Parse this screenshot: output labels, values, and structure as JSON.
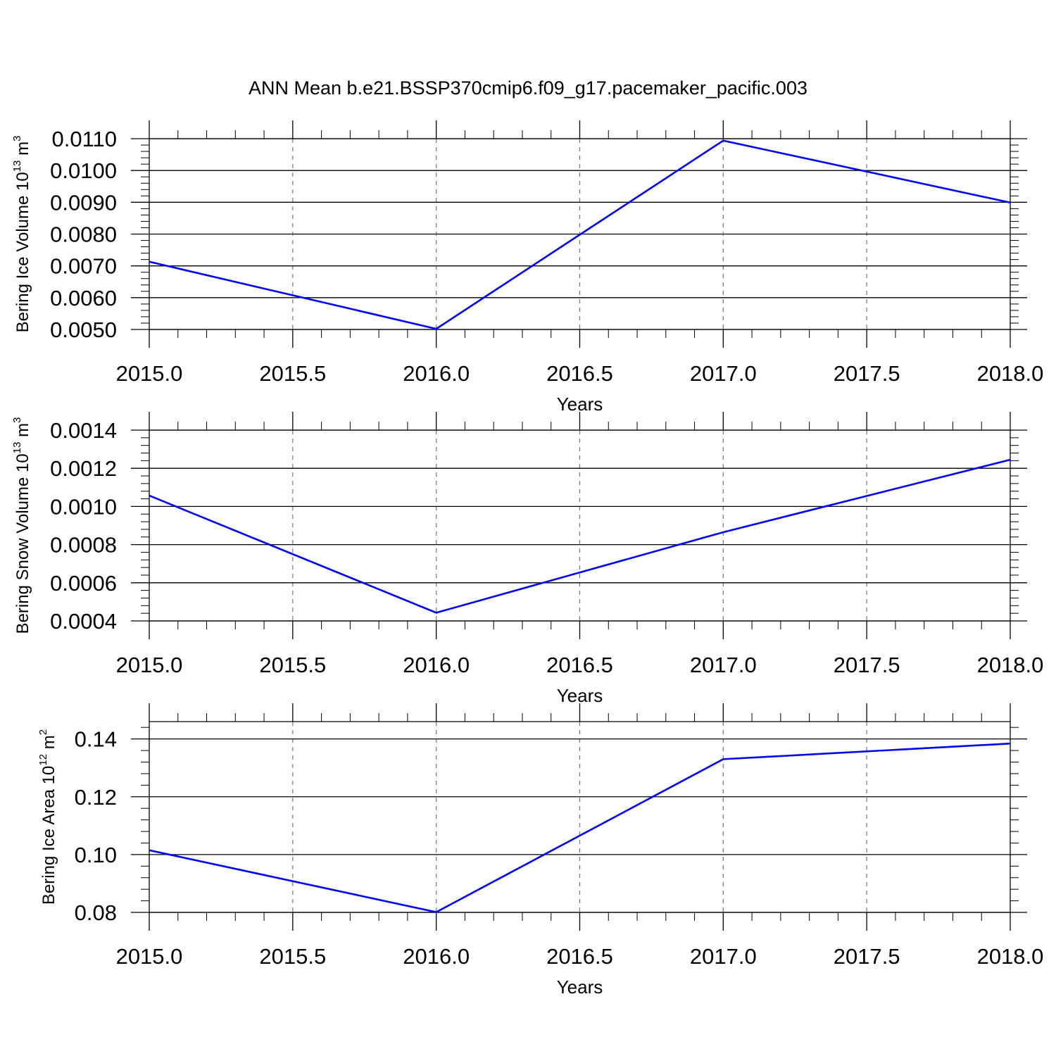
{
  "title": "ANN Mean b.e21.BSSP370cmip6.f09_g17.pacemaker_pacific.003",
  "colors": {
    "line": "#0000ff",
    "axes": "#000000",
    "grid": "#808080"
  },
  "chart_data": [
    {
      "type": "line",
      "x": [
        2015.0,
        2016.0,
        2017.0,
        2018.0
      ],
      "series": [
        {
          "values": [
            0.00713,
            0.00502,
            0.01094,
            0.00899
          ]
        }
      ],
      "xlim": [
        2015.0,
        2018.0
      ],
      "ylim": [
        0.005,
        0.011
      ],
      "xticks": [
        "2015.0",
        "2015.5",
        "2016.0",
        "2016.5",
        "2017.0",
        "2017.5",
        "2018.0"
      ],
      "yticks": [
        "0.0050",
        "0.0060",
        "0.0070",
        "0.0080",
        "0.0090",
        "0.0100",
        "0.0110"
      ],
      "xlabel": "Years",
      "ylabel": {
        "text": "Bering Ice Volume 10",
        "sup": "13",
        "unit": " m",
        "unit_sup": "3"
      },
      "grid": "vertical dashed at major x ticks"
    },
    {
      "type": "line",
      "x": [
        2015.0,
        2016.0,
        2017.0,
        2018.0
      ],
      "series": [
        {
          "values": [
            0.001057,
            0.000443,
            0.000865,
            0.001245
          ]
        }
      ],
      "xlim": [
        2015.0,
        2018.0
      ],
      "ylim": [
        0.0004,
        0.0014
      ],
      "xticks": [
        "2015.0",
        "2015.5",
        "2016.0",
        "2016.5",
        "2017.0",
        "2017.5",
        "2018.0"
      ],
      "yticks": [
        "0.0004",
        "0.0006",
        "0.0008",
        "0.0010",
        "0.0012",
        "0.0014"
      ],
      "xlabel": "Years",
      "ylabel": {
        "text": "Bering Snow Volume 10",
        "sup": "13",
        "unit": " m",
        "unit_sup": "3"
      },
      "grid": "vertical dashed at major x ticks"
    },
    {
      "type": "line",
      "x": [
        2015.0,
        2016.0,
        2017.0,
        2018.0
      ],
      "series": [
        {
          "values": [
            0.1015,
            0.0801,
            0.133,
            0.1384
          ]
        }
      ],
      "xlim": [
        2015.0,
        2018.0
      ],
      "ylim": [
        0.08,
        0.146
      ],
      "xticks": [
        "2015.0",
        "2015.5",
        "2016.0",
        "2016.5",
        "2017.0",
        "2017.5",
        "2018.0"
      ],
      "yticks": [
        "0.08",
        "0.10",
        "0.12",
        "0.14"
      ],
      "xlabel": "Years",
      "ylabel": {
        "text": "Bering Ice Area 10",
        "sup": "12",
        "unit": " m",
        "unit_sup": "2"
      },
      "grid": "vertical dashed at major x ticks"
    }
  ]
}
